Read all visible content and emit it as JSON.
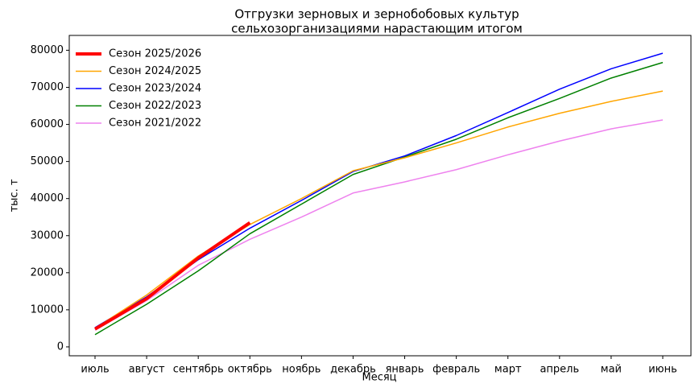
{
  "chart_data": {
    "type": "line",
    "title": [
      "Отгрузки зерновых и зернобобовых культур",
      "сельхозорганизациями нарастающим итогом"
    ],
    "xlabel": "Месяц",
    "ylabel": "тыс. т",
    "categories": [
      "июль",
      "август",
      "сентябрь",
      "октябрь",
      "ноябрь",
      "декабрь",
      "январь",
      "февраль",
      "март",
      "апрель",
      "май",
      "июнь"
    ],
    "series": [
      {
        "name": "Сезон 2025/2026",
        "color": "#ff0000",
        "width": 4,
        "values": [
          4800,
          13000,
          24000,
          33500,
          null,
          null,
          null,
          null,
          null,
          null,
          null,
          null
        ]
      },
      {
        "name": "Сезон 2024/2025",
        "color": "#ffa500",
        "width": 1.5,
        "values": [
          5000,
          14000,
          24500,
          33000,
          40000,
          47500,
          51000,
          55000,
          59300,
          63000,
          66200,
          69000
        ]
      },
      {
        "name": "Сезон 2023/2024",
        "color": "#0000ff",
        "width": 1.5,
        "values": [
          5200,
          13500,
          23500,
          32000,
          39500,
          47300,
          51500,
          57000,
          63200,
          69500,
          75000,
          79200
        ]
      },
      {
        "name": "Сезон 2022/2023",
        "color": "#008000",
        "width": 1.5,
        "values": [
          3300,
          11500,
          20500,
          30500,
          38500,
          46500,
          51200,
          56000,
          61800,
          67000,
          72500,
          76700
        ]
      },
      {
        "name": "Сезон 2021/2022",
        "color": "#ee82ee",
        "width": 1.5,
        "values": [
          4500,
          12500,
          22000,
          29000,
          35000,
          41500,
          44500,
          47800,
          51800,
          55500,
          58800,
          61200
        ]
      }
    ],
    "ylim": [
      -2400,
      84000
    ],
    "yticks": [
      0,
      10000,
      20000,
      30000,
      40000,
      50000,
      60000,
      70000,
      80000
    ],
    "legend": "upper left"
  }
}
